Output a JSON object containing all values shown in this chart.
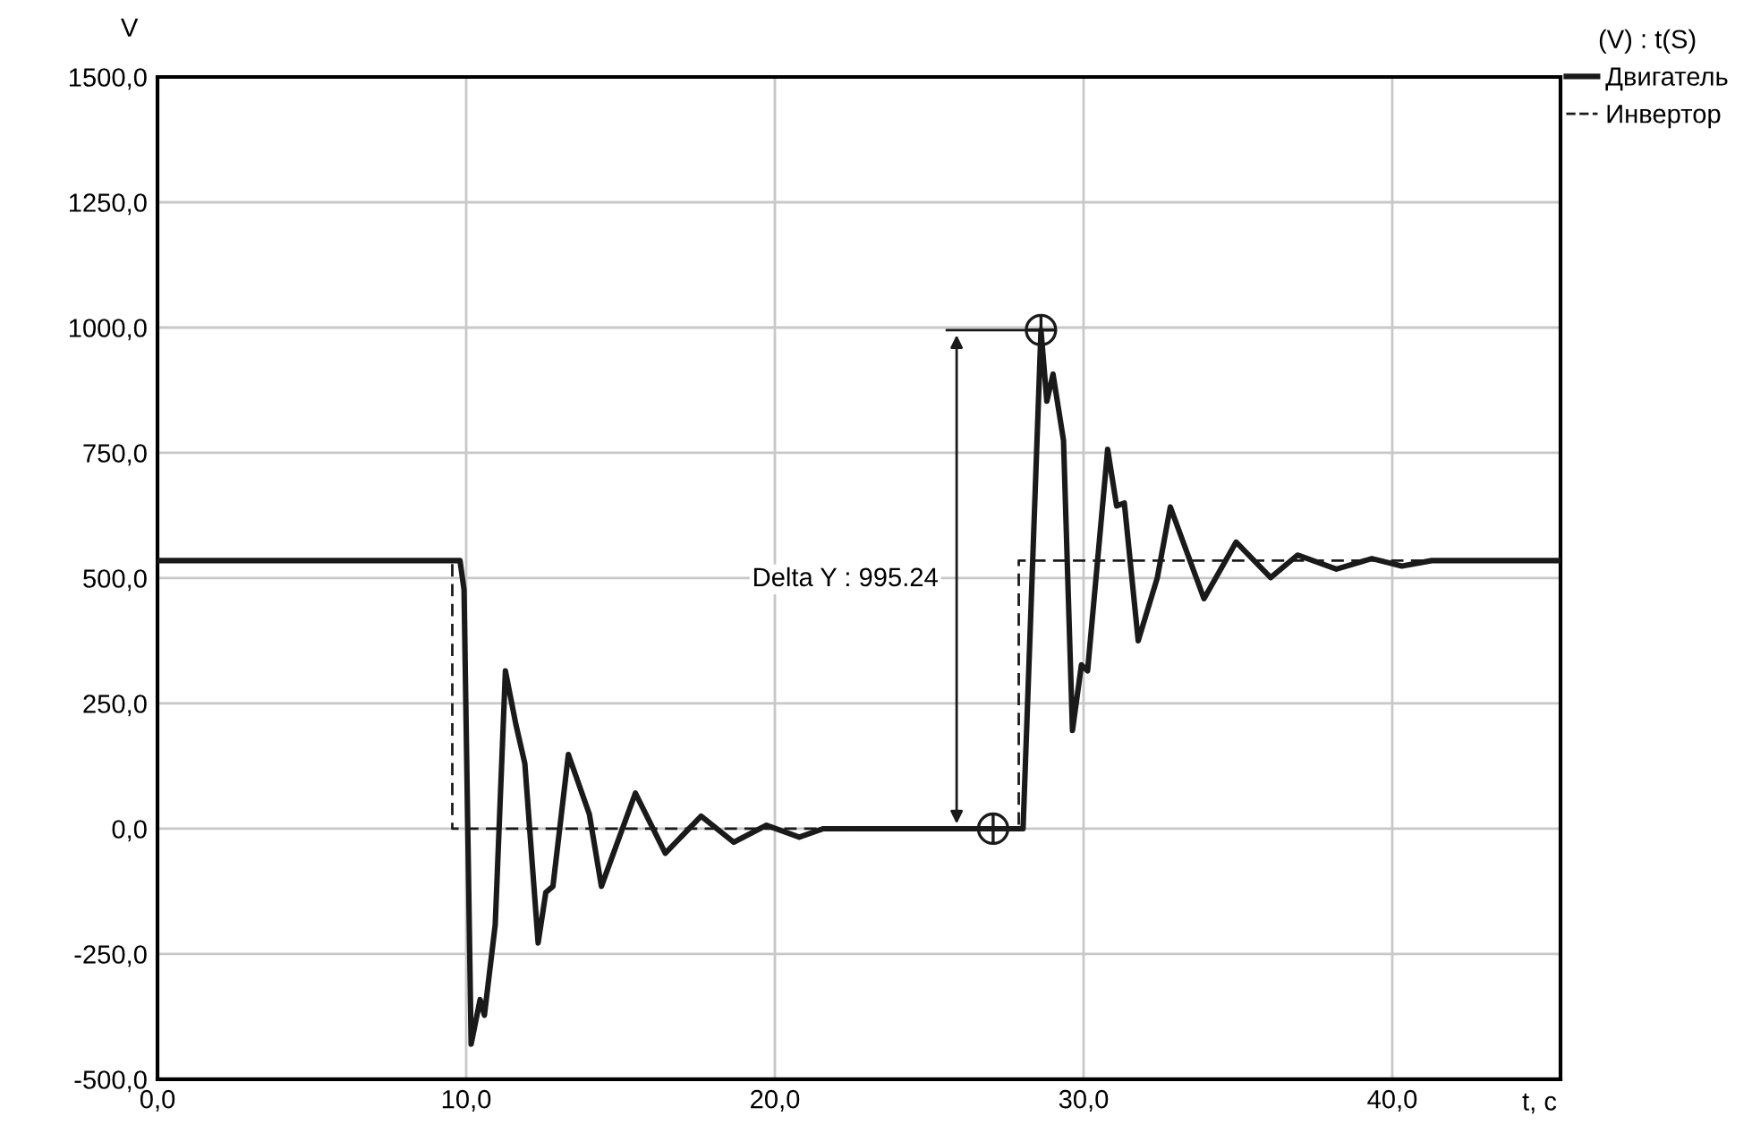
{
  "chart_data": {
    "type": "line",
    "xlabel": "t, c",
    "ylabel": "V",
    "legend_title": "(V) : t(S)",
    "xlim": [
      0,
      45.45
    ],
    "ylim": [
      -500,
      1500
    ],
    "xticks": [
      {
        "value": 0,
        "label": "0,0"
      },
      {
        "value": 10,
        "label": "10,0"
      },
      {
        "value": 20,
        "label": "20,0"
      },
      {
        "value": 30,
        "label": "30,0"
      },
      {
        "value": 40,
        "label": "40,0"
      }
    ],
    "yticks": [
      {
        "value": -500,
        "label": "-500,0"
      },
      {
        "value": -250,
        "label": "-250,0"
      },
      {
        "value": 0,
        "label": "0,0"
      },
      {
        "value": 250,
        "label": "250,0"
      },
      {
        "value": 500,
        "label": "500,0"
      },
      {
        "value": 750,
        "label": "750,0"
      },
      {
        "value": 1000,
        "label": "1000,0"
      },
      {
        "value": 1250,
        "label": "1250,0"
      },
      {
        "value": 1500,
        "label": "1500,0"
      }
    ],
    "grid": true,
    "legend": "top right",
    "series": [
      {
        "name": "Двигатель",
        "color": "#1a1a1a",
        "line_style": "solid",
        "x": [
          0,
          9.8,
          9.93,
          10.16,
          10.45,
          10.59,
          10.94,
          11.27,
          11.61,
          11.9,
          12.33,
          12.58,
          12.81,
          13.31,
          13.99,
          14.38,
          15.48,
          16.45,
          17.61,
          18.67,
          19.73,
          20.79,
          21.57,
          28.04,
          28.62,
          28.81,
          29.01,
          29.35,
          29.64,
          29.93,
          30.13,
          30.78,
          31.07,
          31.32,
          31.77,
          32.39,
          32.81,
          33.9,
          34.94,
          36.06,
          36.93,
          38.19,
          39.34,
          40.31,
          41.28,
          45.45
        ],
        "values": [
          535,
          535,
          477,
          -430,
          -341,
          -372,
          -192,
          315,
          208,
          130,
          -228,
          -127,
          -115,
          148,
          29,
          -115,
          71,
          -49,
          25,
          -27,
          7,
          -17,
          0,
          0,
          995,
          853,
          907,
          775,
          196,
          327,
          315,
          757,
          644,
          650,
          375,
          501,
          642,
          459,
          572,
          501,
          546,
          518,
          539,
          524,
          535,
          535
        ]
      },
      {
        "name": "Инвертор",
        "color": "#1a1a1a",
        "line_style": "dashed",
        "x": [
          0,
          9.55,
          9.55,
          27.9,
          27.9,
          45.45
        ],
        "values": [
          535,
          535,
          0,
          0,
          535,
          535
        ]
      },
      {
        "type": "scatter",
        "color": "#1a1a1a",
        "marker": "circle",
        "x": [
          27.07,
          28.62
        ],
        "values": [
          0,
          995
        ]
      }
    ],
    "annotations": [
      "Delta Y : 995.24"
    ]
  }
}
